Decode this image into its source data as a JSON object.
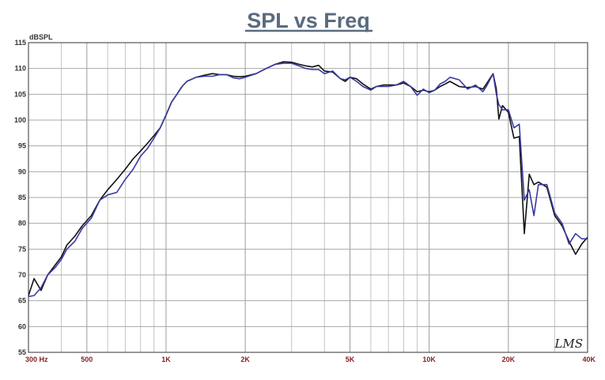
{
  "chart_data": {
    "type": "line",
    "title": "SPL vs Freq",
    "ylabel": "dBSPL",
    "xscale": "log",
    "xlim": [
      300,
      40000
    ],
    "ylim": [
      55,
      115
    ],
    "grid": true,
    "yticks": [
      55,
      60,
      65,
      70,
      75,
      80,
      85,
      90,
      95,
      100,
      105,
      110,
      115
    ],
    "xticks": [
      {
        "value": 300,
        "label": "300  Hz"
      },
      {
        "value": 500,
        "label": "500"
      },
      {
        "value": 1000,
        "label": "1K"
      },
      {
        "value": 2000,
        "label": "2K"
      },
      {
        "value": 5000,
        "label": "5K"
      },
      {
        "value": 10000,
        "label": "10K"
      },
      {
        "value": 20000,
        "label": "20K"
      },
      {
        "value": 40000,
        "label": "40K"
      }
    ],
    "watermark": "LMS",
    "series": [
      {
        "color": "#111111",
        "points": [
          [
            300,
            66.0
          ],
          [
            315,
            69.3
          ],
          [
            335,
            67.0
          ],
          [
            355,
            70.0
          ],
          [
            380,
            72.0
          ],
          [
            400,
            73.5
          ],
          [
            420,
            75.8
          ],
          [
            450,
            77.5
          ],
          [
            480,
            79.5
          ],
          [
            520,
            81.5
          ],
          [
            560,
            84.5
          ],
          [
            600,
            86.5
          ],
          [
            650,
            88.5
          ],
          [
            700,
            90.5
          ],
          [
            750,
            92.5
          ],
          [
            800,
            94.0
          ],
          [
            850,
            95.5
          ],
          [
            900,
            97.0
          ],
          [
            950,
            98.5
          ],
          [
            1000,
            101.0
          ],
          [
            1050,
            103.5
          ],
          [
            1100,
            105.0
          ],
          [
            1150,
            106.5
          ],
          [
            1200,
            107.5
          ],
          [
            1300,
            108.3
          ],
          [
            1400,
            108.7
          ],
          [
            1500,
            109.0
          ],
          [
            1600,
            108.8
          ],
          [
            1700,
            108.8
          ],
          [
            1800,
            108.5
          ],
          [
            1900,
            108.4
          ],
          [
            2000,
            108.5
          ],
          [
            2200,
            109.0
          ],
          [
            2400,
            110.0
          ],
          [
            2600,
            110.8
          ],
          [
            2800,
            111.3
          ],
          [
            3000,
            111.2
          ],
          [
            3200,
            110.8
          ],
          [
            3400,
            110.5
          ],
          [
            3600,
            110.3
          ],
          [
            3800,
            110.6
          ],
          [
            4000,
            109.5
          ],
          [
            4300,
            109.3
          ],
          [
            4600,
            108.0
          ],
          [
            4800,
            107.5
          ],
          [
            5000,
            108.3
          ],
          [
            5300,
            108.0
          ],
          [
            5600,
            107.0
          ],
          [
            6000,
            106.0
          ],
          [
            6300,
            106.5
          ],
          [
            6700,
            106.8
          ],
          [
            7000,
            106.8
          ],
          [
            7500,
            106.8
          ],
          [
            8000,
            107.2
          ],
          [
            8500,
            106.5
          ],
          [
            9000,
            105.5
          ],
          [
            9500,
            105.8
          ],
          [
            10000,
            105.5
          ],
          [
            10500,
            105.8
          ],
          [
            11000,
            106.5
          ],
          [
            11500,
            107.0
          ],
          [
            12000,
            107.5
          ],
          [
            13000,
            106.5
          ],
          [
            14000,
            106.3
          ],
          [
            15000,
            106.5
          ],
          [
            16000,
            106.0
          ],
          [
            16500,
            107.0
          ],
          [
            17500,
            109.0
          ],
          [
            18000,
            106.0
          ],
          [
            18400,
            100.2
          ],
          [
            19000,
            102.8
          ],
          [
            20000,
            101.5
          ],
          [
            21000,
            96.5
          ],
          [
            22000,
            96.8
          ],
          [
            23000,
            78.0
          ],
          [
            24000,
            89.5
          ],
          [
            25000,
            87.5
          ],
          [
            26000,
            88.0
          ],
          [
            28000,
            87.0
          ],
          [
            30000,
            81.5
          ],
          [
            32000,
            79.5
          ],
          [
            34000,
            76.5
          ],
          [
            36000,
            74.0
          ],
          [
            38000,
            76.0
          ],
          [
            40000,
            77.3
          ]
        ]
      },
      {
        "color": "#3a3aa0",
        "points": [
          [
            300,
            65.8
          ],
          [
            315,
            66.0
          ],
          [
            335,
            67.5
          ],
          [
            355,
            70.0
          ],
          [
            380,
            71.5
          ],
          [
            400,
            73.0
          ],
          [
            420,
            75.0
          ],
          [
            450,
            76.5
          ],
          [
            480,
            79.0
          ],
          [
            520,
            81.0
          ],
          [
            560,
            84.5
          ],
          [
            600,
            85.5
          ],
          [
            650,
            86.0
          ],
          [
            700,
            88.5
          ],
          [
            750,
            90.5
          ],
          [
            800,
            93.0
          ],
          [
            850,
            94.5
          ],
          [
            900,
            96.5
          ],
          [
            950,
            98.5
          ],
          [
            1000,
            101.0
          ],
          [
            1050,
            103.5
          ],
          [
            1100,
            105.0
          ],
          [
            1150,
            106.5
          ],
          [
            1200,
            107.5
          ],
          [
            1300,
            108.3
          ],
          [
            1400,
            108.5
          ],
          [
            1500,
            108.5
          ],
          [
            1600,
            108.8
          ],
          [
            1700,
            108.8
          ],
          [
            1800,
            108.2
          ],
          [
            1900,
            108.0
          ],
          [
            2000,
            108.3
          ],
          [
            2200,
            109.0
          ],
          [
            2400,
            110.0
          ],
          [
            2600,
            110.8
          ],
          [
            2800,
            111.0
          ],
          [
            3000,
            111.0
          ],
          [
            3200,
            110.5
          ],
          [
            3400,
            110.0
          ],
          [
            3600,
            109.8
          ],
          [
            3800,
            109.8
          ],
          [
            4000,
            109.0
          ],
          [
            4300,
            109.5
          ],
          [
            4600,
            108.0
          ],
          [
            4800,
            107.8
          ],
          [
            5000,
            108.3
          ],
          [
            5300,
            107.5
          ],
          [
            5600,
            106.5
          ],
          [
            6000,
            105.8
          ],
          [
            6300,
            106.5
          ],
          [
            6700,
            106.5
          ],
          [
            7000,
            106.5
          ],
          [
            7500,
            106.8
          ],
          [
            8000,
            107.5
          ],
          [
            8500,
            106.5
          ],
          [
            9000,
            104.8
          ],
          [
            9500,
            106.0
          ],
          [
            10000,
            105.3
          ],
          [
            10500,
            105.8
          ],
          [
            11000,
            107.0
          ],
          [
            11500,
            107.5
          ],
          [
            12000,
            108.3
          ],
          [
            13000,
            107.8
          ],
          [
            14000,
            106.0
          ],
          [
            15000,
            106.8
          ],
          [
            16000,
            105.5
          ],
          [
            16500,
            106.5
          ],
          [
            17500,
            109.0
          ],
          [
            18000,
            105.0
          ],
          [
            18400,
            103.0
          ],
          [
            19000,
            102.0
          ],
          [
            20000,
            102.0
          ],
          [
            21000,
            98.5
          ],
          [
            22000,
            99.2
          ],
          [
            23000,
            84.5
          ],
          [
            24000,
            86.5
          ],
          [
            25000,
            81.5
          ],
          [
            26000,
            87.5
          ],
          [
            28000,
            87.5
          ],
          [
            30000,
            82.0
          ],
          [
            32000,
            80.0
          ],
          [
            34000,
            76.0
          ],
          [
            36000,
            78.0
          ],
          [
            38000,
            77.0
          ],
          [
            40000,
            77.0
          ]
        ]
      }
    ]
  }
}
